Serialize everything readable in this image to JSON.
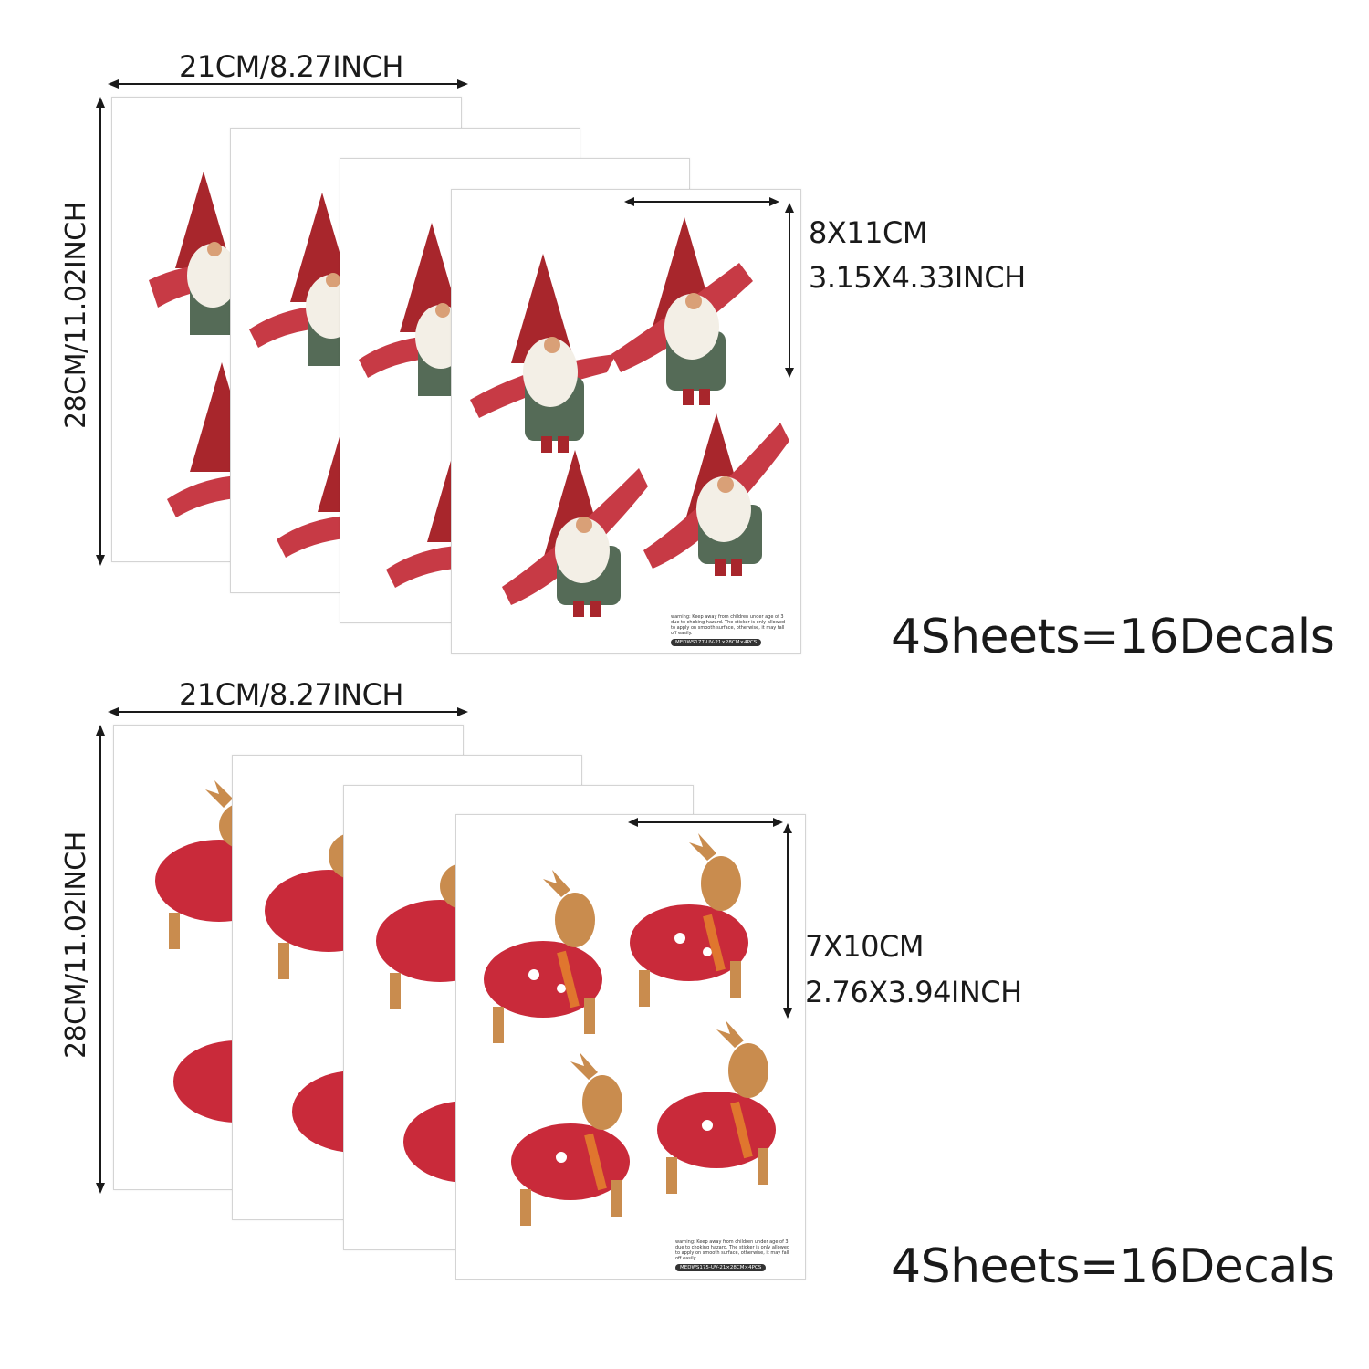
{
  "groups": [
    {
      "id": "gnome",
      "width_label": "21CM/8.27INCH",
      "height_label": "28CM/11.02INCH",
      "decal_size_cm": "8X11CM",
      "decal_size_inch": "3.15X4.33INCH",
      "count_label": "4Sheets=16Decals",
      "sheet_code": "MEDWS177-UV-21×28CM×4PCS",
      "fine_print": "warning: Keep away from children under age of 3 due to choking hazard. The sticker is only allowed to apply on smooth surface, otherwise, it may fall off easily.",
      "decal_icon": "gnome-icon"
    },
    {
      "id": "reindeer",
      "width_label": "21CM/8.27INCH",
      "height_label": "28CM/11.02INCH",
      "decal_size_cm": "7X10CM",
      "decal_size_inch": "2.76X3.94INCH",
      "count_label": "4Sheets=16Decals",
      "sheet_code": "MEDWS175-UV-21×28CM×4PCS",
      "fine_print": "warning: Keep away from children under age of 3 due to choking hazard. The sticker is only allowed to apply on smooth surface, otherwise, it may fall off easily.",
      "decal_icon": "reindeer-icon"
    }
  ],
  "colors": {
    "gnome_hat": "#a8262c",
    "gnome_body": "#556b57",
    "gnome_beard": "#f3efe6",
    "scarf": "#c73a45",
    "reindeer_fur": "#c98c4e",
    "sweater": "#c92a3a",
    "dimension_line": "#1a1a1a"
  }
}
